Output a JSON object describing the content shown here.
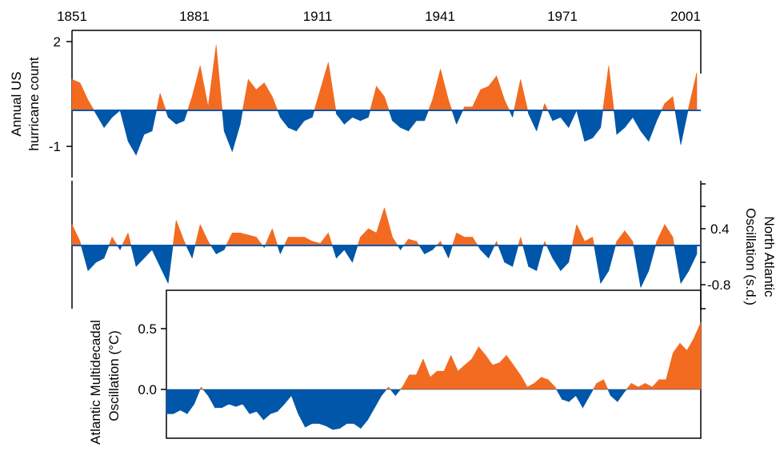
{
  "colors": {
    "positive": "#f26b21",
    "negative": "#0056a8",
    "axis": "#000000"
  },
  "chart_data": [
    {
      "type": "area",
      "name": "hurricanes",
      "ylabel": [
        "Annual US",
        "hurricane count"
      ],
      "yticks": [
        2,
        -1
      ],
      "ylim": [
        -2.1,
        2.1
      ],
      "x": [
        1851,
        1853,
        1855,
        1857,
        1859,
        1861,
        1863,
        1865,
        1867,
        1869,
        1871,
        1873,
        1875,
        1877,
        1879,
        1881,
        1883,
        1885,
        1887,
        1889,
        1891,
        1893,
        1895,
        1897,
        1899,
        1901,
        1903,
        1905,
        1907,
        1909,
        1911,
        1913,
        1915,
        1917,
        1919,
        1921,
        1923,
        1925,
        1927,
        1929,
        1931,
        1933,
        1935,
        1937,
        1939,
        1941,
        1943,
        1945,
        1947,
        1949,
        1951,
        1953,
        1955,
        1957,
        1959,
        1961,
        1963,
        1965,
        1967,
        1969,
        1971,
        1973,
        1975,
        1977,
        1979,
        1981,
        1983,
        1985,
        1987,
        1989,
        1991,
        1993,
        1995,
        1997,
        1999,
        2001,
        2003,
        2005,
        2007
      ],
      "values": [
        0.9,
        0.8,
        0.3,
        -0.1,
        -0.5,
        -0.2,
        0,
        -0.9,
        -1.3,
        -0.7,
        -0.6,
        0.5,
        -0.2,
        -0.4,
        -0.3,
        0.4,
        1.3,
        0.1,
        1.9,
        -0.6,
        -1.2,
        -0.4,
        0.9,
        0.6,
        0.8,
        0.4,
        -0.2,
        -0.5,
        -0.6,
        -0.3,
        -0.2,
        0.6,
        1.4,
        -0.1,
        -0.4,
        -0.2,
        -0.3,
        -0.2,
        0.7,
        0.4,
        -0.3,
        -0.5,
        -0.6,
        -0.3,
        -0.3,
        0.3,
        1.2,
        0.3,
        -0.4,
        0.1,
        0.1,
        0.6,
        0.7,
        1.0,
        0.3,
        -0.2,
        0.9,
        -0.1,
        -0.6,
        0.2,
        -0.3,
        -0.2,
        -0.5,
        0,
        -0.9,
        -0.8,
        -0.5,
        1.3,
        -0.7,
        -0.5,
        -0.2,
        -0.6,
        -0.9,
        -0.3,
        0.2,
        0.4,
        -1.0,
        0.1,
        1.1
      ]
    },
    {
      "type": "area",
      "name": "nao",
      "ylabel": [
        "North Atlantic",
        "Oscillation (s.d.)"
      ],
      "yticks": [
        0.4,
        -0.8
      ],
      "ylim": [
        -1.05,
        1.05
      ],
      "x": [
        1851,
        1853,
        1855,
        1857,
        1859,
        1861,
        1863,
        1865,
        1867,
        1869,
        1871,
        1873,
        1875,
        1877,
        1879,
        1881,
        1883,
        1885,
        1887,
        1889,
        1891,
        1893,
        1895,
        1897,
        1899,
        1901,
        1903,
        1905,
        1907,
        1909,
        1911,
        1913,
        1915,
        1917,
        1919,
        1921,
        1923,
        1925,
        1927,
        1929,
        1931,
        1933,
        1935,
        1937,
        1939,
        1941,
        1943,
        1945,
        1947,
        1949,
        1951,
        1953,
        1955,
        1957,
        1959,
        1961,
        1963,
        1965,
        1967,
        1969,
        1971,
        1973,
        1975,
        1977,
        1979,
        1981,
        1983,
        1985,
        1987,
        1989,
        1991,
        1993,
        1995,
        1997,
        1999,
        2001,
        2003,
        2005,
        2007
      ],
      "values": [
        0.5,
        0.1,
        -0.6,
        -0.4,
        -0.3,
        0.2,
        -0.1,
        0.3,
        -0.5,
        -0.3,
        -0.1,
        -0.5,
        -0.9,
        0.6,
        0.1,
        -0.3,
        0.5,
        0.1,
        -0.2,
        -0.1,
        0.3,
        0.3,
        0.25,
        0.2,
        -0.05,
        0.4,
        -0.2,
        0.2,
        0.2,
        0.2,
        0.1,
        0.05,
        0.3,
        -0.3,
        -0.1,
        -0.4,
        0.2,
        0.4,
        0.3,
        0.9,
        0.2,
        -0.1,
        0.15,
        0.1,
        -0.2,
        -0.1,
        0.1,
        -0.3,
        0.3,
        0.2,
        0.2,
        -0.1,
        -0.3,
        0.1,
        -0.4,
        -0.5,
        0.2,
        -0.5,
        -0.6,
        0.1,
        -0.3,
        -0.6,
        -0.4,
        0.5,
        0.1,
        0.2,
        -0.9,
        -0.6,
        0.1,
        0.35,
        0.1,
        -1.0,
        -0.6,
        0.1,
        0.5,
        0.2,
        -0.9,
        -0.6,
        -0.2
      ]
    },
    {
      "type": "area",
      "name": "amo",
      "ylabel": [
        "Atlantic Multidecadal",
        "Oscillation (°C)"
      ],
      "yticks": [
        0.5,
        0.0
      ],
      "ylim": [
        -0.5,
        0.62
      ],
      "x": [
        1856,
        1858,
        1860,
        1862,
        1864,
        1866,
        1868,
        1870,
        1872,
        1874,
        1876,
        1878,
        1880,
        1882,
        1884,
        1886,
        1888,
        1890,
        1892,
        1894,
        1896,
        1898,
        1900,
        1902,
        1904,
        1906,
        1908,
        1910,
        1912,
        1914,
        1916,
        1918,
        1920,
        1922,
        1924,
        1926,
        1928,
        1930,
        1932,
        1934,
        1936,
        1938,
        1940,
        1942,
        1944,
        1946,
        1948,
        1950,
        1952,
        1954,
        1956,
        1958,
        1960,
        1962,
        1964,
        1966,
        1968,
        1970,
        1972,
        1974,
        1976,
        1978,
        1980,
        1982,
        1984,
        1986,
        1988,
        1990,
        1992,
        1994,
        1996,
        1998,
        2000,
        2002,
        2004,
        2006,
        2008,
        2010
      ],
      "values": [
        -0.2,
        -0.2,
        -0.17,
        -0.2,
        -0.12,
        0.02,
        -0.05,
        -0.15,
        -0.15,
        -0.12,
        -0.14,
        -0.12,
        -0.2,
        -0.18,
        -0.25,
        -0.2,
        -0.18,
        -0.12,
        -0.05,
        -0.2,
        -0.31,
        -0.28,
        -0.28,
        -0.3,
        -0.33,
        -0.32,
        -0.28,
        -0.28,
        -0.32,
        -0.25,
        -0.15,
        -0.05,
        0.02,
        -0.05,
        0.02,
        0.12,
        0.12,
        0.25,
        0.1,
        0.15,
        0.15,
        0.28,
        0.15,
        0.2,
        0.25,
        0.35,
        0.28,
        0.2,
        0.22,
        0.28,
        0.2,
        0.12,
        0.02,
        0.05,
        0.1,
        0.08,
        0.02,
        -0.08,
        -0.1,
        -0.05,
        -0.15,
        -0.05,
        0.05,
        0.08,
        -0.05,
        -0.1,
        -0.02,
        0.05,
        0.02,
        0.05,
        0.02,
        0.08,
        0.08,
        0.3,
        0.38,
        0.32,
        0.42,
        0.55
      ]
    }
  ],
  "x_axis": {
    "tick_labels": [
      "1851",
      "1881",
      "1911",
      "1941",
      "1971",
      "2001"
    ]
  }
}
